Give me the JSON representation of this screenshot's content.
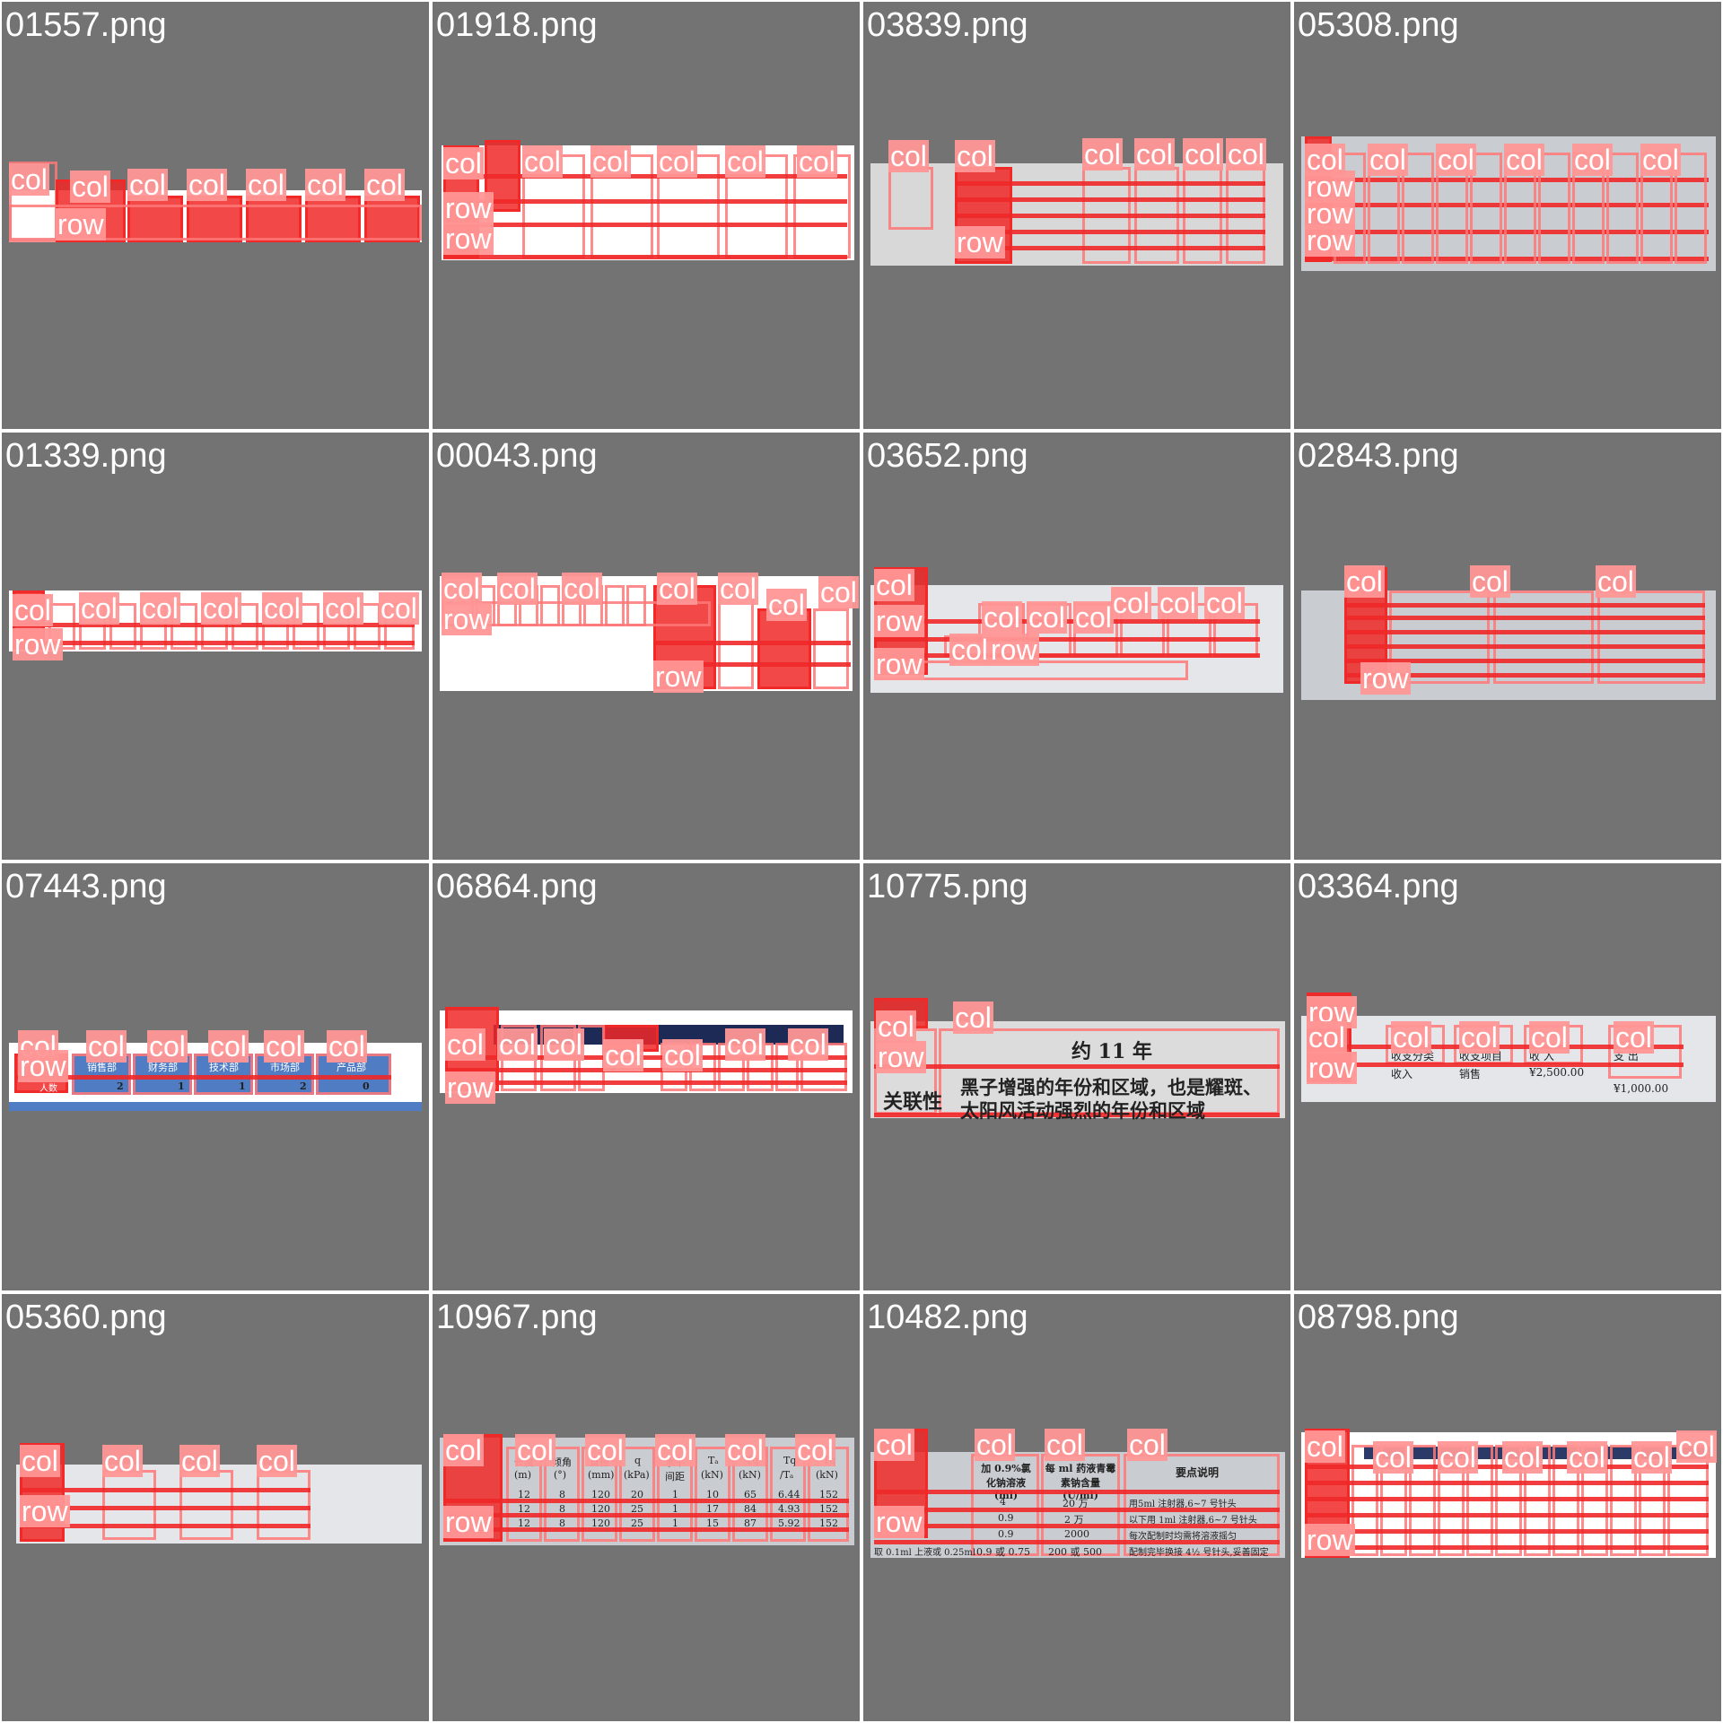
{
  "tiles": [
    {
      "name": "01557.png"
    },
    {
      "name": "01918.png"
    },
    {
      "name": "03839.png"
    },
    {
      "name": "05308.png"
    },
    {
      "name": "01339.png"
    },
    {
      "name": "00043.png"
    },
    {
      "name": "03652.png"
    },
    {
      "name": "02843.png"
    },
    {
      "name": "07443.png",
      "header_cells": [
        "销售部",
        "财务部",
        "技术部",
        "市场部",
        "产品部"
      ],
      "row_label": "人数",
      "row_values": [
        "2",
        "1",
        "1",
        "2",
        "0"
      ]
    },
    {
      "name": "06864.png"
    },
    {
      "name": "10775.png",
      "header_text": "约 11 年",
      "row_label": "关联性",
      "body_line_1": "黑子增强的年份和区域，也是耀斑、",
      "body_line_2": "太阳风活动强烈的年份和区域"
    },
    {
      "name": "03364.png",
      "cells": [
        "收支分类",
        "收支项目",
        "收 入",
        "支 出",
        "收入",
        "销售",
        "¥2,500.00",
        "¥1,000.00"
      ]
    },
    {
      "name": "05360.png"
    },
    {
      "name": "10967.png",
      "headers": [
        "长度",
        "倾角",
        "直径",
        "q",
        "水平",
        "Tₐ",
        "Tq",
        "Tq",
        "Tq"
      ],
      "units": [
        "(m)",
        "(°)",
        "(mm)",
        "(kPa)",
        "间距",
        "(kN)",
        "(kN)",
        "/Tₐ",
        "(kN)"
      ],
      "rows": [
        [
          "12",
          "8",
          "120",
          "20",
          "1",
          "10",
          "65",
          "6.44",
          "152"
        ],
        [
          "12",
          "8",
          "120",
          "25",
          "1",
          "17",
          "84",
          "4.93",
          "152"
        ],
        [
          "12",
          "8",
          "120",
          "25",
          "1",
          "15",
          "87",
          "5.92",
          "152"
        ]
      ]
    },
    {
      "name": "10482.png",
      "header_1": "加 0.9%氯化钠溶液(ml)",
      "header_2": "每 ml 药液青霉素钠含量(U/ml)",
      "header_3": "要点说明",
      "rows": [
        [
          "4",
          "20 万",
          "用5ml 注射器,6~7 号针头"
        ],
        [
          "0.9",
          "2 万",
          "以下用 1ml 注射器,6~7 号针头"
        ],
        [
          "0.9",
          "2000",
          "每次配制时均需将溶液摇匀"
        ],
        [
          "0.9 或 0.75",
          "200 或 500",
          "配制完毕换接 4½ 号针头,妥善固定"
        ]
      ],
      "footer_left": "取 0.1ml 上液或 0.25ml"
    },
    {
      "name": "08798.png"
    }
  ],
  "labels": {
    "col": "col",
    "row": "row"
  },
  "colors": {
    "tile_bg": "#737373",
    "annotation_fill": "#f02828",
    "annotation_label": "#ff9696",
    "filename_text": "#ffffff"
  }
}
